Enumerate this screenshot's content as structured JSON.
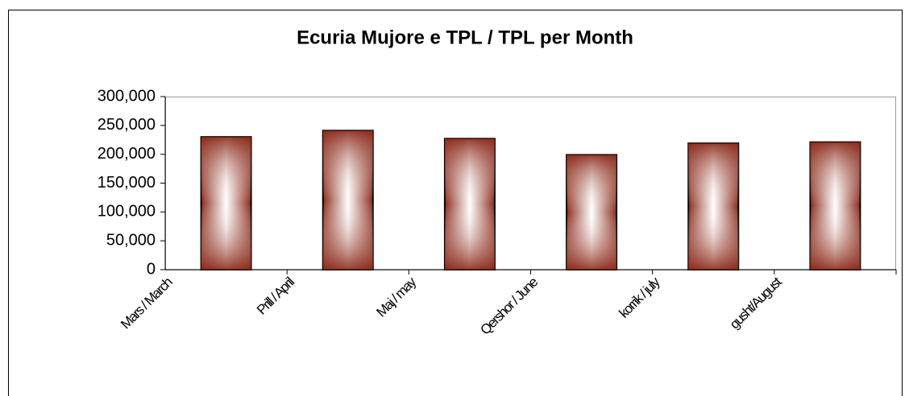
{
  "chart_data": {
    "type": "bar",
    "title": "Ecuria Mujore e TPL / TPL per  Month",
    "categories": [
      "Mars / March",
      "Prill / April",
      "Maj / may",
      "Qershor / June",
      "korrik / july",
      "gusht/August"
    ],
    "values": [
      230000,
      241000,
      227000,
      199000,
      219000,
      221000
    ],
    "color": "#8b2a1a",
    "ylim": [
      0,
      300000
    ],
    "yticks": [
      0,
      {
        "value": 50000,
        "label": "50,000"
      },
      {
        "value": 100000,
        "label": "100,000"
      },
      {
        "value": 150000,
        "label": "150,000"
      },
      {
        "value": 200000,
        "label": "200,000"
      },
      {
        "value": 250000,
        "label": "250,000"
      },
      {
        "value": 300000,
        "label": "300,000"
      }
    ],
    "grid": false
  }
}
